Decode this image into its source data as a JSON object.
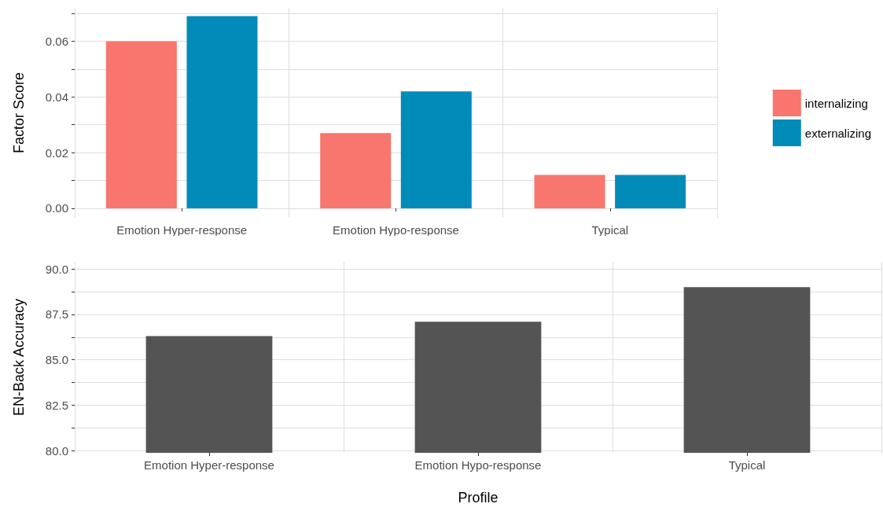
{
  "chart_data": [
    {
      "type": "bar",
      "ylabel": "Factor Score",
      "categories": [
        "Emotion Hyper-response",
        "Emotion Hypo-response",
        "Typical"
      ],
      "series": [
        {
          "name": "internalizing",
          "color": "#f8766d",
          "values": [
            0.06,
            0.027,
            0.012
          ]
        },
        {
          "name": "externalizing",
          "color": "#008bb8",
          "values": [
            0.069,
            0.042,
            0.012
          ]
        }
      ],
      "ylim": [
        -0.0034,
        0.072
      ],
      "yticks": [
        {
          "value": 0,
          "label": "0.00"
        },
        {
          "value": 0.01,
          "label": null
        },
        {
          "value": 0.02,
          "label": "0.02"
        },
        {
          "value": 0.03,
          "label": null
        },
        {
          "value": 0.04,
          "label": "0.04"
        },
        {
          "value": 0.05,
          "label": null
        },
        {
          "value": 0.06,
          "label": "0.06"
        },
        {
          "value": 0.07,
          "label": null
        }
      ],
      "grid": true,
      "legend": "right"
    },
    {
      "type": "bar",
      "xlabel": "Profile",
      "ylabel": "EN-Back Accuracy",
      "categories": [
        "Emotion Hyper-response",
        "Emotion Hypo-response",
        "Typical"
      ],
      "series": [
        {
          "color": "#545454",
          "values": [
            86.3,
            87.1,
            89.0
          ]
        }
      ],
      "ylim": [
        79.87,
        90.4
      ],
      "yticks": [
        {
          "value": 80,
          "label": "80.0"
        },
        {
          "value": 81.25,
          "label": null
        },
        {
          "value": 82.5,
          "label": "82.5"
        },
        {
          "value": 83.75,
          "label": null
        },
        {
          "value": 85,
          "label": "85.0"
        },
        {
          "value": 86.25,
          "label": null
        },
        {
          "value": 87.5,
          "label": "87.5"
        },
        {
          "value": 88.75,
          "label": null
        },
        {
          "value": 90,
          "label": "90.0"
        }
      ],
      "grid": true,
      "legend": false
    }
  ]
}
